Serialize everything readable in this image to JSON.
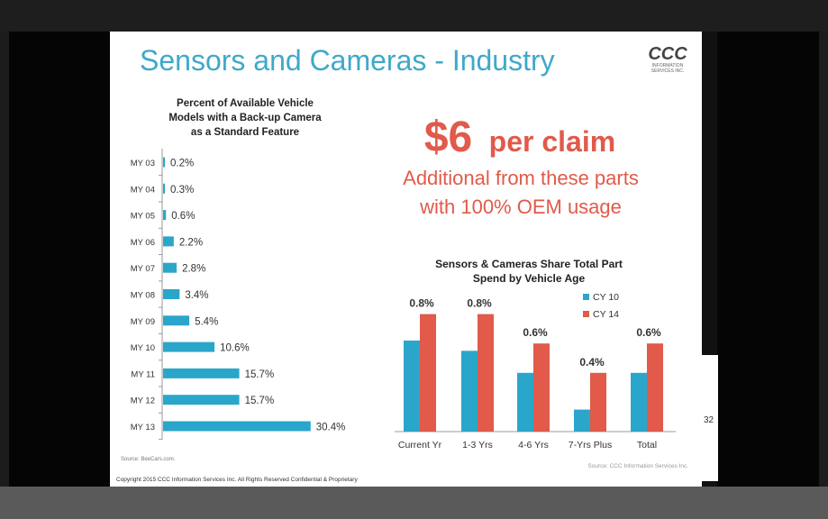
{
  "slide": {
    "title": "Sensors and Cameras - Industry",
    "logo": {
      "name": "CCC",
      "line1": "INFORMATION",
      "line2": "SERVICES INC."
    },
    "headline_amount": "$6",
    "headline_suffix": "per claim",
    "subheadline_line1": "Additional from these parts",
    "subheadline_line2": "with 100% OEM usage",
    "left_source": "Source: BeeCars.com.",
    "right_source": "Source: CCC Information Services Inc.",
    "copyright": "Copyright 2015 CCC Information Services Inc.  All Rights Reserved Confidential & Proprietary",
    "page_number": "32"
  },
  "colors": {
    "title": "#3fa9c9",
    "blue": "#2ba6cb",
    "red": "#e15a4a",
    "axis": "#999999"
  },
  "chart_data": [
    {
      "type": "bar",
      "orientation": "horizontal",
      "title_lines": [
        "Percent of Available Vehicle",
        "Models with a Back-up Camera",
        "as a Standard Feature"
      ],
      "categories": [
        "MY 03",
        "MY 04",
        "MY 05",
        "MY 06",
        "MY 07",
        "MY 08",
        "MY 09",
        "MY 10",
        "MY 11",
        "MY 12",
        "MY 13"
      ],
      "values": [
        0.2,
        0.3,
        0.6,
        2.2,
        2.8,
        3.4,
        5.4,
        10.6,
        15.7,
        15.7,
        30.4
      ],
      "labels": [
        "0.2%",
        "0.3%",
        "0.6%",
        "2.2%",
        "2.8%",
        "3.4%",
        "5.4%",
        "10.6%",
        "15.7%",
        "15.7%",
        "30.4%"
      ],
      "xlim": [
        0,
        32
      ]
    },
    {
      "type": "bar",
      "title_lines": [
        "Sensors & Cameras Share Total Part",
        "Spend by Vehicle Age"
      ],
      "categories": [
        "Current Yr",
        "1-3 Yrs",
        "4-6 Yrs",
        "7-Yrs Plus",
        "Total"
      ],
      "series": [
        {
          "name": "CY 10",
          "values": [
            0.62,
            0.55,
            0.4,
            0.15,
            0.4
          ]
        },
        {
          "name": "CY 14",
          "values": [
            0.8,
            0.8,
            0.6,
            0.4,
            0.6
          ]
        }
      ],
      "data_labels": [
        "0.8%",
        "0.8%",
        "0.6%",
        "0.4%",
        "0.6%"
      ],
      "ylim": [
        0,
        1.0
      ],
      "legend": "top-right"
    }
  ]
}
